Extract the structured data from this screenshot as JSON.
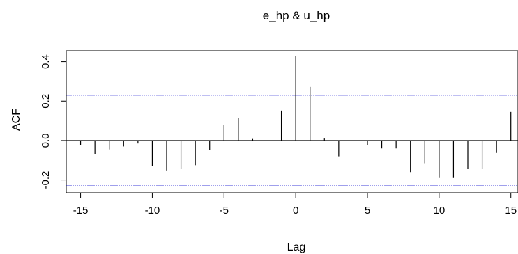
{
  "chart_data": {
    "type": "bar",
    "title": "e_hp & u_hp",
    "xlabel": "Lag",
    "ylabel": "ACF",
    "xlim": [
      -16,
      15.5
    ],
    "ylim": [
      -0.265,
      0.455
    ],
    "x_ticks": [
      -15,
      -10,
      -5,
      0,
      5,
      10,
      15
    ],
    "x_tick_labels": [
      "-15",
      "-10",
      "-5",
      "0",
      "5",
      "10",
      "15"
    ],
    "y_ticks": [
      -0.2,
      0.0,
      0.2,
      0.4
    ],
    "y_tick_labels": [
      "-0.2",
      "0.0",
      "0.2",
      "0.4"
    ],
    "confidence_bound": 0.23,
    "confidence_color": "#0000cc",
    "lags": [
      -15,
      -14,
      -13,
      -12,
      -11,
      -10,
      -9,
      -8,
      -7,
      -6,
      -5,
      -4,
      -3,
      -2,
      -1,
      0,
      1,
      2,
      3,
      4,
      5,
      6,
      7,
      8,
      9,
      10,
      11,
      12,
      13,
      14,
      15
    ],
    "values": [
      -0.025,
      -0.068,
      -0.045,
      -0.03,
      -0.015,
      -0.13,
      -0.155,
      -0.145,
      -0.125,
      -0.048,
      0.08,
      0.115,
      0.008,
      -0.002,
      0.152,
      0.43,
      0.272,
      0.01,
      -0.08,
      -0.002,
      -0.025,
      -0.04,
      -0.04,
      -0.16,
      -0.115,
      -0.19,
      -0.19,
      -0.145,
      -0.145,
      -0.063,
      0.145
    ]
  }
}
